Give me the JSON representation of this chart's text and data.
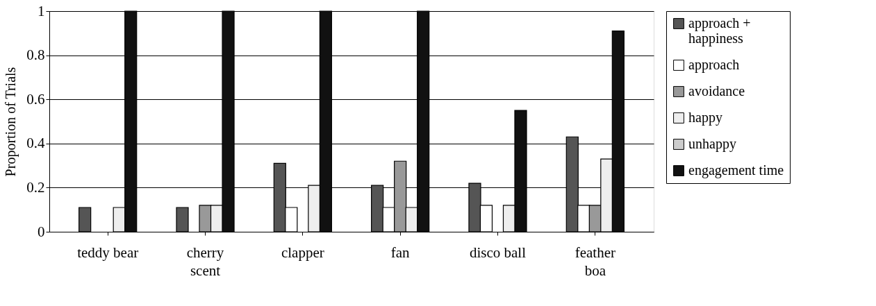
{
  "chart_data": {
    "type": "bar",
    "ylabel": "Proportion of Trials",
    "categories": [
      "teddy bear",
      "cherry\nscent",
      "clapper",
      "fan",
      "disco ball",
      "feather\nboa"
    ],
    "series": [
      {
        "name": "approach +\nhappiness",
        "color": "#555555",
        "values": [
          0.11,
          0.11,
          0.31,
          0.21,
          0.22,
          0.43
        ]
      },
      {
        "name": "approach",
        "color": "#ffffff",
        "values": [
          null,
          null,
          0.11,
          0.11,
          0.12,
          0.12
        ]
      },
      {
        "name": "avoidance",
        "color": "#999999",
        "values": [
          null,
          0.12,
          null,
          0.32,
          null,
          0.12
        ]
      },
      {
        "name": "happy",
        "color": "#eeeeee",
        "values": [
          0.11,
          0.12,
          0.21,
          0.11,
          0.12,
          0.33
        ]
      },
      {
        "name": "unhappy",
        "color": "#cccccc",
        "values": [
          null,
          null,
          null,
          null,
          null,
          null
        ]
      },
      {
        "name": "engagement time",
        "color": "#111111",
        "values": [
          1,
          1,
          1,
          1,
          0.55,
          0.91
        ]
      }
    ],
    "ylim": [
      0,
      1
    ],
    "yticks": [
      {
        "value": 0,
        "label": "0"
      },
      0.2,
      0.4,
      0.6,
      0.8,
      {
        "value": 1,
        "label": "1"
      }
    ],
    "grid": "y",
    "legend": "right"
  }
}
